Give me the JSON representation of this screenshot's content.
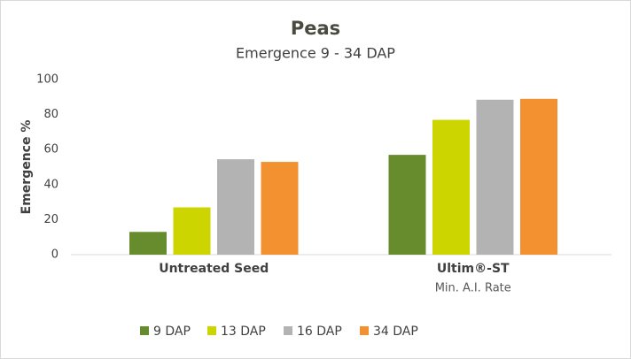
{
  "chart_data": {
    "type": "bar",
    "title": "Peas",
    "subtitle": "Emergence 9 - 34 DAP",
    "y_label": "Emergence %",
    "categories": [
      "Untreated Seed",
      "Ultim®-ST"
    ],
    "category_notes": [
      null,
      "Min. A.I. Rate"
    ],
    "series": [
      {
        "name": "9 DAP",
        "color": "#668c2e",
        "values": [
          13,
          57
        ]
      },
      {
        "name": "13 DAP",
        "color": "#ccd500",
        "values": [
          27,
          77
        ]
      },
      {
        "name": "16 DAP",
        "color": "#b3b3b4",
        "values": [
          54.5,
          88.5
        ]
      },
      {
        "name": "34 DAP",
        "color": "#f39130",
        "values": [
          53,
          89
        ]
      }
    ],
    "ylim": [
      0,
      100
    ],
    "yticks": [
      0,
      20,
      40,
      60,
      80,
      100
    ],
    "grid": false,
    "legend": "bottom"
  }
}
